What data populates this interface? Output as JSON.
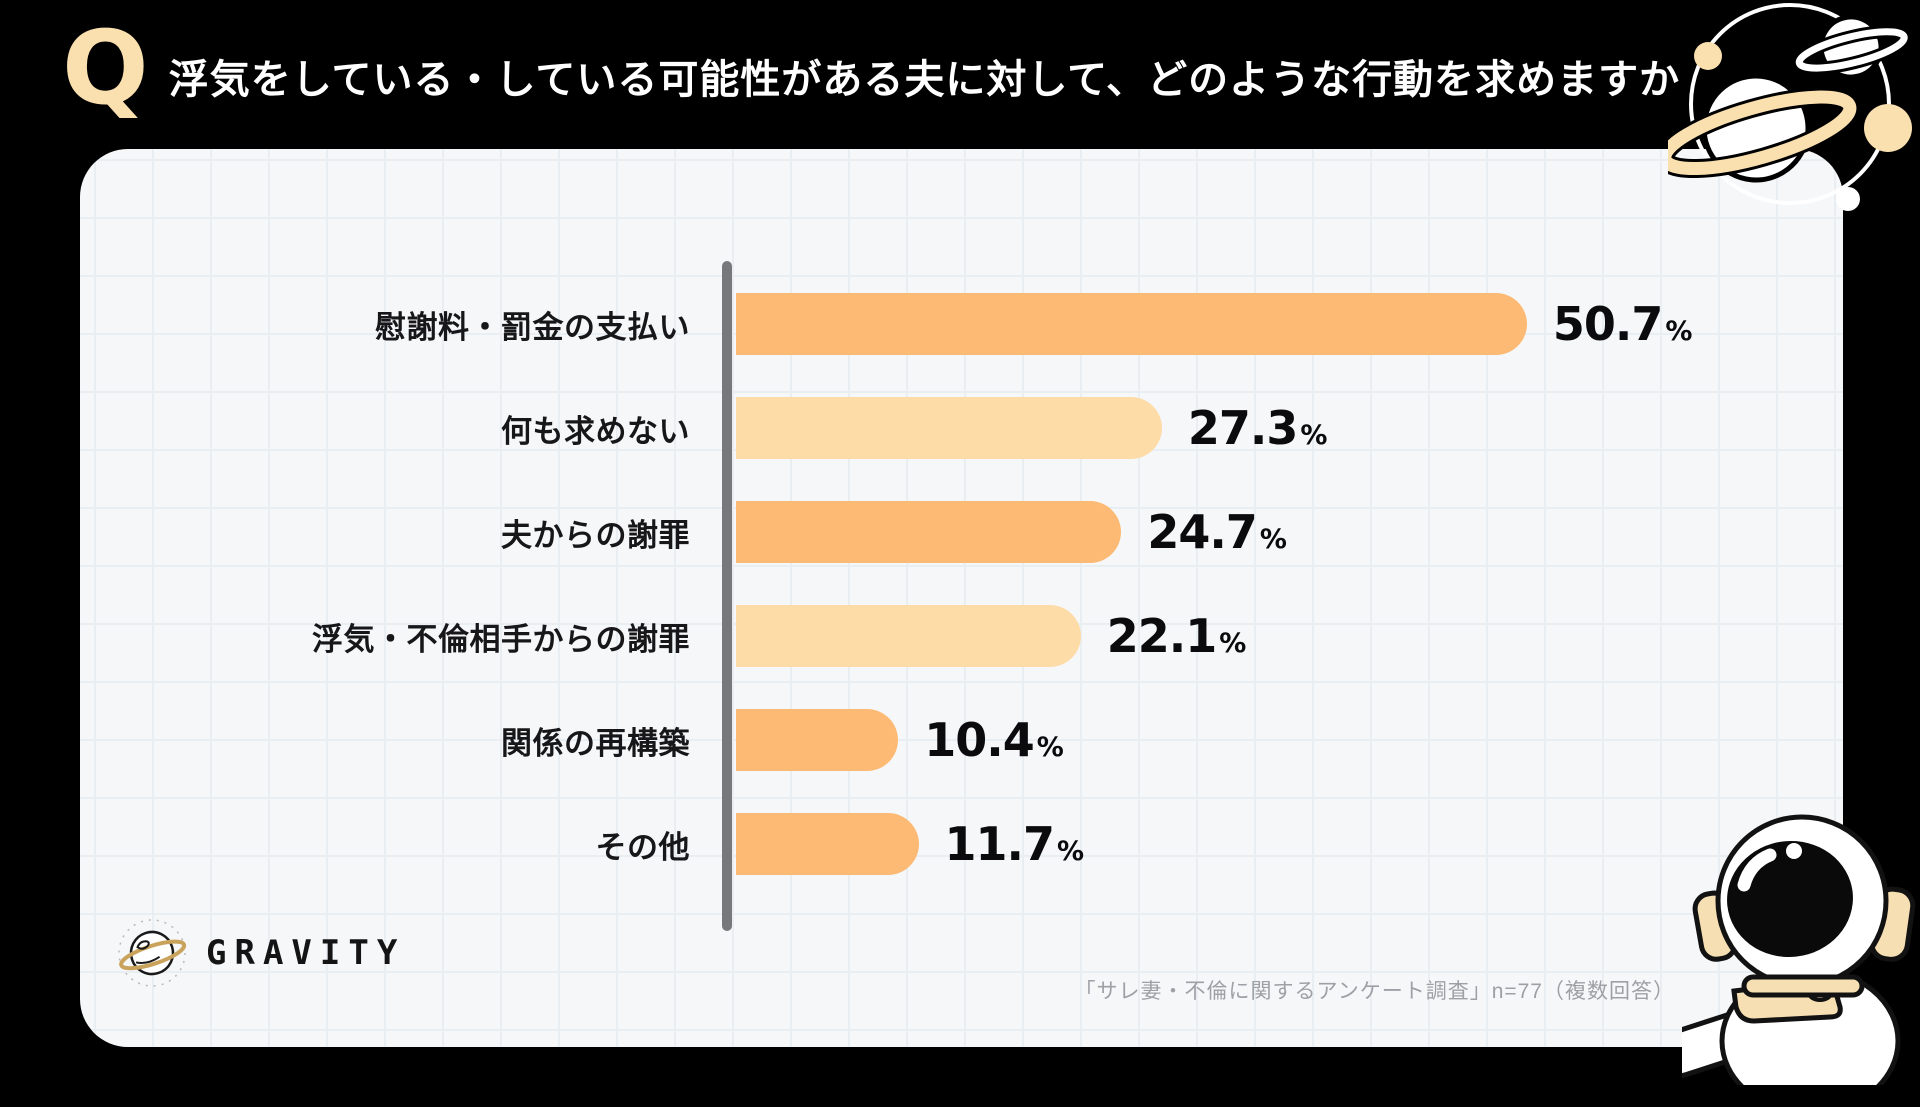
{
  "header": {
    "q_mark": "Q",
    "title": "浮気をしている・している可能性がある夫に対して、どのような行動を求めますか"
  },
  "chart_data": {
    "type": "bar",
    "orientation": "horizontal",
    "categories": [
      "慰謝料・罰金の支払い",
      "何も求めない",
      "夫からの謝罪",
      "浮気・不倫相手からの謝罪",
      "関係の再構築",
      "その他"
    ],
    "values": [
      50.7,
      27.3,
      24.7,
      22.1,
      10.4,
      11.7
    ],
    "value_suffix": "%",
    "bar_colors": [
      "#FCBA74",
      "#FDDCA8",
      "#FCBA74",
      "#FDDCA8",
      "#FCBA74",
      "#FCBA74"
    ],
    "xlim": [
      0,
      52
    ],
    "grid": true,
    "legend": false,
    "axis_color": "#77787B"
  },
  "footer": {
    "brand": "GRAVITY",
    "source": "「サレ妻・不倫に関するアンケート調査」n=77（複数回答）"
  },
  "colors": {
    "background": "#000000",
    "card": "#F6F7F8",
    "grid_line": "#E9EEF2",
    "accent_orange": "#FCBA74",
    "accent_peach": "#FDDCA8",
    "accent_cream": "#FAE0AE",
    "title_text": "#FFFFFF",
    "label_text": "#17171A",
    "source_text": "#9EA0A6"
  },
  "decorations": {
    "top_right": "saturn-planets-illustration",
    "bottom_right": "astronaut-illustration",
    "brand_icon": "ringed-planet-doodle"
  }
}
